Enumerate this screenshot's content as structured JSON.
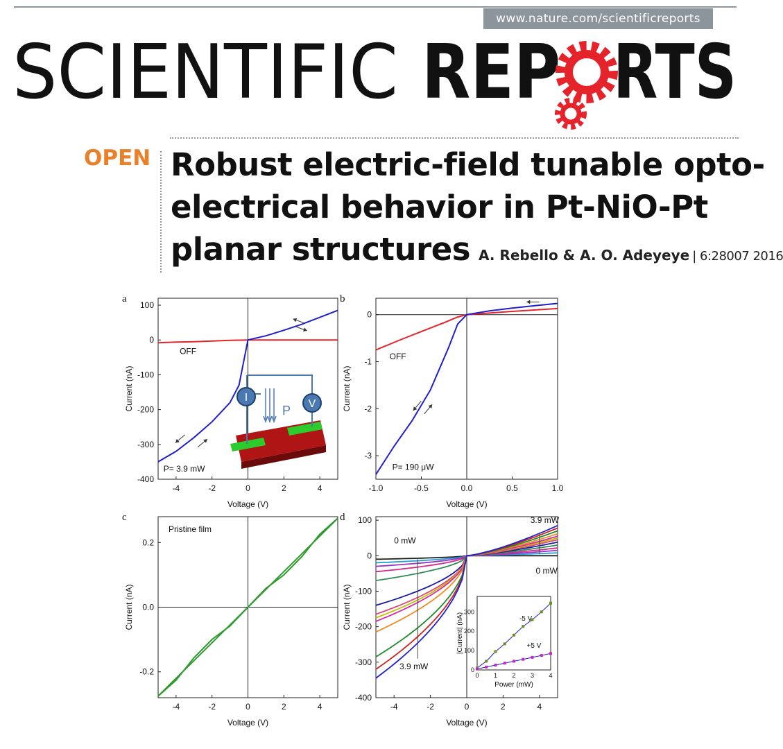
{
  "header": {
    "url": "www.nature.com/scientificreports",
    "journal_light": "SCIENTIFIC",
    "journal_bold": "REP",
    "journal_bold_end": "RTS",
    "accent_color": "#e4232b"
  },
  "article": {
    "open_label": "OPEN",
    "title_lines": [
      "Robust electric-field tunable opto-",
      "electrical behavior in Pt-NiO-Pt",
      "planar structures"
    ],
    "authors": "A. Rebello & A. O. Adeyeye",
    "citation": "| 6:28007 2016"
  },
  "figure": {
    "panels": {
      "a": {
        "label": "a",
        "xlabel": "Voltage (V)",
        "ylabel": "Current (nA)",
        "xticks": [
          "-4",
          "-2",
          "0",
          "2",
          "4"
        ],
        "yticks": [
          "100",
          "0",
          "-100",
          "-200",
          "-300",
          "-400"
        ],
        "off_label": "OFF",
        "power_label": "P= 3.9 mW",
        "inset_labels": {
          "current": "I",
          "voltage": "V",
          "power": "P"
        }
      },
      "b": {
        "label": "b",
        "xlabel": "Voltage (V)",
        "ylabel": "Current (nA)",
        "xticks": [
          "-1.0",
          "-0.5",
          "0.0",
          "0.5",
          "1.0"
        ],
        "yticks": [
          "0",
          "-1",
          "-2",
          "-3"
        ],
        "off_label": "OFF",
        "power_label": "P= 190 μW"
      },
      "c": {
        "label": "c",
        "xlabel": "Voltage (V)",
        "ylabel": "Current (nA)",
        "xticks": [
          "-4",
          "-2",
          "0",
          "2",
          "4"
        ],
        "yticks": [
          "0.2",
          "0.0",
          "-0.2"
        ],
        "annotation": "Pristine film"
      },
      "d": {
        "label": "d",
        "xlabel": "Voltage (V)",
        "ylabel": "Current (nA)",
        "xticks": [
          "-4",
          "-2",
          "0",
          "2",
          "4"
        ],
        "yticks": [
          "100",
          "0",
          "-100",
          "-200",
          "-300",
          "-400"
        ],
        "ann_top_right": "3.9 mW",
        "ann_zero_left": "0 mW",
        "ann_zero_right": "0 mW",
        "ann_bottom": "3.9 mW",
        "inset": {
          "xlabel": "Power (mW)",
          "ylabel": "|Current| (nA)",
          "xticks": [
            "0",
            "1",
            "2",
            "3",
            "4"
          ],
          "yticks": [
            "0",
            "100",
            "200",
            "300"
          ],
          "label_neg": "-5 V",
          "label_pos": "+5 V"
        }
      }
    }
  },
  "chart_data": [
    {
      "type": "line",
      "panel": "a",
      "xlim": [
        -5,
        5
      ],
      "ylim": [
        -400,
        120
      ],
      "series": [
        {
          "name": "OFF",
          "color": "#e4232b",
          "x": [
            -5,
            -4,
            -3,
            -2,
            -1,
            0,
            1,
            2,
            3,
            4,
            5
          ],
          "y": [
            -8,
            -6,
            -5,
            -3,
            -1,
            0,
            0,
            0,
            0,
            0,
            0
          ]
        },
        {
          "color": "#1f1fcf",
          "x": [
            -5,
            -4,
            -3,
            -2,
            -1,
            -0.5,
            0,
            1,
            2,
            3,
            4,
            5
          ],
          "y": [
            -350,
            -320,
            -280,
            -235,
            -180,
            -130,
            0,
            12,
            28,
            45,
            65,
            85
          ]
        }
      ]
    },
    {
      "type": "line",
      "panel": "b",
      "xlim": [
        -1,
        1
      ],
      "ylim": [
        -3.5,
        0.35
      ],
      "series": [
        {
          "name": "OFF",
          "color": "#e4232b",
          "x": [
            -1,
            -0.75,
            -0.5,
            -0.25,
            -0.1,
            0,
            0.5,
            1
          ],
          "y": [
            -0.75,
            -0.55,
            -0.36,
            -0.17,
            -0.05,
            0,
            0.07,
            0.13
          ]
        },
        {
          "color": "#1f1fcf",
          "x": [
            -1,
            -0.8,
            -0.6,
            -0.4,
            -0.2,
            -0.1,
            0,
            0.25,
            0.5,
            0.75,
            1
          ],
          "y": [
            -3.4,
            -2.8,
            -2.25,
            -1.6,
            -0.7,
            -0.2,
            0,
            0.08,
            0.14,
            0.19,
            0.24
          ]
        }
      ]
    },
    {
      "type": "line",
      "panel": "c",
      "xlim": [
        -5,
        5
      ],
      "ylim": [
        -0.28,
        0.28
      ],
      "series": [
        {
          "color": "#2e9b2e",
          "x": [
            -5,
            -4,
            -3,
            -2,
            -1,
            0,
            1,
            2,
            3,
            4,
            5
          ],
          "y": [
            -0.275,
            -0.22,
            -0.165,
            -0.11,
            -0.055,
            0,
            0.055,
            0.11,
            0.165,
            0.22,
            0.275
          ]
        }
      ]
    },
    {
      "type": "line",
      "panel": "d",
      "xlim": [
        -5,
        5
      ],
      "ylim": [
        -400,
        110
      ],
      "series": [
        {
          "color": "#222222",
          "neg": -10,
          "pos": 0
        },
        {
          "color": "#1f9fd6",
          "neg": -20,
          "pos": 8
        },
        {
          "color": "#9b30c8",
          "neg": -30,
          "pos": 15
        },
        {
          "color": "#d42a8a",
          "neg": -45,
          "pos": 22
        },
        {
          "color": "#2e8b57",
          "neg": -70,
          "pos": 30
        },
        {
          "color": "#1a1aa0",
          "neg": -140,
          "pos": 38
        },
        {
          "color": "#e0457b",
          "neg": -165,
          "pos": 45
        },
        {
          "color": "#c0c000",
          "neg": -175,
          "pos": 50
        },
        {
          "color": "#d42aa8",
          "neg": -185,
          "pos": 55
        },
        {
          "color": "#f08c1e",
          "neg": -215,
          "pos": 62
        },
        {
          "color": "#1a8a2a",
          "neg": -285,
          "pos": 70
        },
        {
          "color": "#d02020",
          "neg": -320,
          "pos": 78
        },
        {
          "color": "#2020d0",
          "neg": -345,
          "pos": 85
        }
      ],
      "inset": {
        "type": "line",
        "xlim": [
          0,
          4
        ],
        "ylim": [
          0,
          380
        ],
        "series": [
          {
            "name": "-5 V",
            "color": "#1f1fcf",
            "marker_color": "#6b8e23",
            "x": [
              0,
              0.5,
              1,
              1.5,
              2,
              2.5,
              3,
              3.5,
              4
            ],
            "y": [
              10,
              45,
              95,
              135,
              180,
              225,
              260,
              300,
              345
            ]
          },
          {
            "name": "+5 V",
            "color": "#1f1fcf",
            "marker_color": "#cc22cc",
            "x": [
              0,
              0.5,
              1,
              1.5,
              2,
              2.5,
              3,
              3.5,
              4
            ],
            "y": [
              5,
              15,
              25,
              35,
              45,
              55,
              65,
              75,
              85
            ]
          }
        ]
      }
    }
  ]
}
